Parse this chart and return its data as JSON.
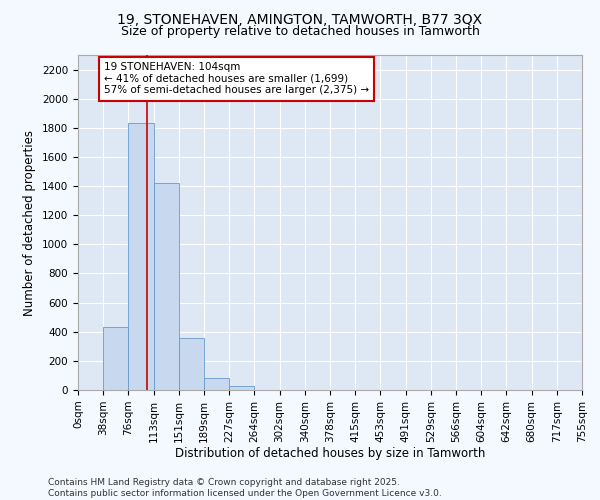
{
  "title": "19, STONEHAVEN, AMINGTON, TAMWORTH, B77 3QX",
  "subtitle": "Size of property relative to detached houses in Tamworth",
  "xlabel": "Distribution of detached houses by size in Tamworth",
  "ylabel": "Number of detached properties",
  "bar_color": "#c8d8ee",
  "bar_edge_color": "#6699cc",
  "background_color": "#dde8f4",
  "grid_color": "#ffffff",
  "fig_bg_color": "#f4f8ff",
  "bin_edges": [
    0,
    37.75,
    75.5,
    113.25,
    151.0,
    188.75,
    226.5,
    264.25,
    302.0,
    339.75,
    377.5,
    415.25,
    453.0,
    490.75,
    528.5,
    566.25,
    604.0,
    641.75,
    679.5,
    717.25,
    755.0
  ],
  "bin_labels": [
    "0sqm",
    "38sqm",
    "76sqm",
    "113sqm",
    "151sqm",
    "189sqm",
    "227sqm",
    "264sqm",
    "302sqm",
    "340sqm",
    "378sqm",
    "415sqm",
    "453sqm",
    "491sqm",
    "529sqm",
    "566sqm",
    "604sqm",
    "642sqm",
    "680sqm",
    "717sqm",
    "755sqm"
  ],
  "bar_heights": [
    0,
    430,
    1830,
    1420,
    360,
    80,
    25,
    0,
    0,
    0,
    0,
    0,
    0,
    0,
    0,
    0,
    0,
    0,
    0,
    0
  ],
  "property_size": 104,
  "red_line_color": "#cc0000",
  "annotation_line1": "19 STONEHAVEN: 104sqm",
  "annotation_line2": "← 41% of detached houses are smaller (1,699)",
  "annotation_line3": "57% of semi-detached houses are larger (2,375) →",
  "annotation_box_color": "#cc0000",
  "ylim": [
    0,
    2300
  ],
  "yticks": [
    0,
    200,
    400,
    600,
    800,
    1000,
    1200,
    1400,
    1600,
    1800,
    2000,
    2200
  ],
  "footer_text": "Contains HM Land Registry data © Crown copyright and database right 2025.\nContains public sector information licensed under the Open Government Licence v3.0.",
  "title_fontsize": 10,
  "subtitle_fontsize": 9,
  "axis_label_fontsize": 8.5,
  "tick_fontsize": 7.5,
  "annotation_fontsize": 7.5,
  "footer_fontsize": 6.5
}
